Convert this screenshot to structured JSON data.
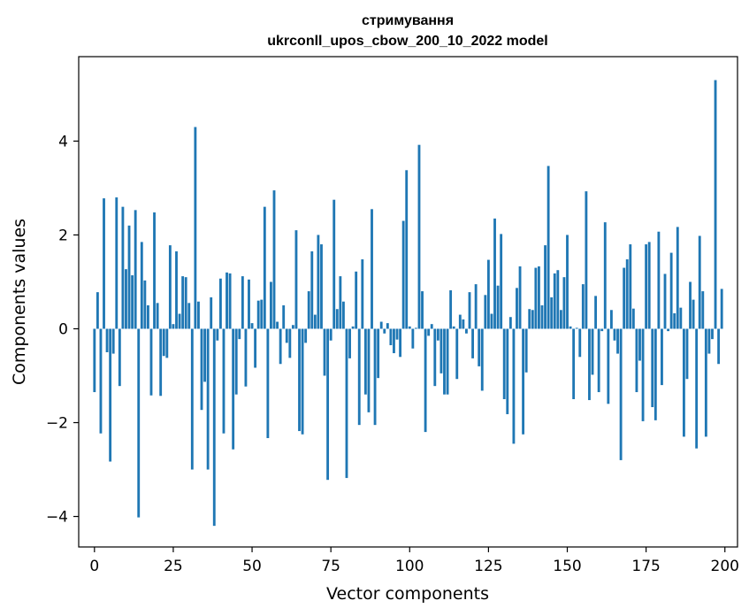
{
  "chart_data": {
    "type": "bar",
    "title_line1": "стримування",
    "title_line2": "ukrconll_upos_cbow_200_10_2022 model",
    "xlabel": "Vector components",
    "ylabel": "Components values",
    "xlim": [
      -5,
      204
    ],
    "ylim": [
      -4.65,
      5.8
    ],
    "x_ticks": [
      0,
      25,
      50,
      75,
      100,
      125,
      150,
      175,
      200
    ],
    "y_ticks": [
      -4,
      -2,
      0,
      2,
      4
    ],
    "x_tick_labels": [
      "0",
      "25",
      "50",
      "75",
      "100",
      "125",
      "150",
      "175",
      "200"
    ],
    "y_tick_labels": [
      "−4",
      "−2",
      "0",
      "2",
      "4"
    ],
    "bar_color": "#1f77b4",
    "grid": false,
    "legend": "none",
    "x": [
      0,
      1,
      2,
      3,
      4,
      5,
      6,
      7,
      8,
      9,
      10,
      11,
      12,
      13,
      14,
      15,
      16,
      17,
      18,
      19,
      20,
      21,
      22,
      23,
      24,
      25,
      26,
      27,
      28,
      29,
      30,
      31,
      32,
      33,
      34,
      35,
      36,
      37,
      38,
      39,
      40,
      41,
      42,
      43,
      44,
      45,
      46,
      47,
      48,
      49,
      50,
      51,
      52,
      53,
      54,
      55,
      56,
      57,
      58,
      59,
      60,
      61,
      62,
      63,
      64,
      65,
      66,
      67,
      68,
      69,
      70,
      71,
      72,
      73,
      74,
      75,
      76,
      77,
      78,
      79,
      80,
      81,
      82,
      83,
      84,
      85,
      86,
      87,
      88,
      89,
      90,
      91,
      92,
      93,
      94,
      95,
      96,
      97,
      98,
      99,
      100,
      101,
      102,
      103,
      104,
      105,
      106,
      107,
      108,
      109,
      110,
      111,
      112,
      113,
      114,
      115,
      116,
      117,
      118,
      119,
      120,
      121,
      122,
      123,
      124,
      125,
      126,
      127,
      128,
      129,
      130,
      131,
      132,
      133,
      134,
      135,
      136,
      137,
      138,
      139,
      140,
      141,
      142,
      143,
      144,
      145,
      146,
      147,
      148,
      149,
      150,
      151,
      152,
      153,
      154,
      155,
      156,
      157,
      158,
      159,
      160,
      161,
      162,
      163,
      164,
      165,
      166,
      167,
      168,
      169,
      170,
      171,
      172,
      173,
      174,
      175,
      176,
      177,
      178,
      179,
      180,
      181,
      182,
      183,
      184,
      185,
      186,
      187,
      188,
      189,
      190,
      191,
      192,
      193,
      194,
      195,
      196,
      197,
      198,
      199
    ],
    "values": [
      -1.35,
      0.78,
      -2.23,
      2.78,
      -0.5,
      -2.83,
      -0.53,
      2.8,
      -1.22,
      2.6,
      1.27,
      2.2,
      1.14,
      2.53,
      -4.02,
      1.85,
      1.03,
      0.5,
      -1.42,
      2.48,
      0.55,
      -1.43,
      -0.58,
      -0.62,
      1.78,
      0.1,
      1.65,
      0.32,
      1.12,
      1.1,
      0.55,
      -3.0,
      4.3,
      0.58,
      -1.73,
      -1.13,
      -3.0,
      0.67,
      -4.2,
      -0.25,
      1.07,
      -2.23,
      1.2,
      1.18,
      -2.57,
      -1.4,
      -0.22,
      1.12,
      -1.23,
      1.05,
      0.12,
      -0.83,
      0.6,
      0.62,
      2.6,
      -2.33,
      1.0,
      2.95,
      0.15,
      -0.75,
      0.5,
      -0.3,
      -0.62,
      0.08,
      2.1,
      -2.18,
      -2.25,
      -0.3,
      0.8,
      1.65,
      0.3,
      2.0,
      1.8,
      -1.0,
      -3.22,
      -0.25,
      2.75,
      0.42,
      1.12,
      0.58,
      -3.18,
      -0.63,
      0.05,
      1.22,
      -2.05,
      1.48,
      -1.4,
      -1.78,
      2.55,
      -2.05,
      -1.05,
      0.15,
      -0.1,
      0.12,
      -0.35,
      -0.52,
      -0.23,
      -0.6,
      2.3,
      3.38,
      0.05,
      -0.42,
      0.02,
      3.92,
      0.8,
      -2.2,
      -0.15,
      0.1,
      -1.22,
      -0.25,
      -0.95,
      -1.4,
      -1.4,
      0.82,
      0.05,
      -1.07,
      0.3,
      0.2,
      -0.1,
      0.78,
      -0.63,
      0.95,
      -0.8,
      -1.32,
      0.72,
      1.47,
      0.32,
      2.35,
      0.92,
      2.02,
      -1.5,
      -1.82,
      0.25,
      -2.45,
      0.87,
      1.33,
      -2.25,
      -0.93,
      0.42,
      0.4,
      1.3,
      1.33,
      0.5,
      1.78,
      3.47,
      0.67,
      1.18,
      1.25,
      0.4,
      1.1,
      2.0,
      0.05,
      -1.5,
      0.02,
      -0.6,
      0.95,
      2.93,
      -1.52,
      -0.98,
      0.7,
      -1.35,
      -0.05,
      2.27,
      -1.6,
      0.4,
      -0.25,
      -0.53,
      -2.8,
      1.3,
      1.48,
      1.8,
      0.43,
      -1.35,
      -0.68,
      -1.97,
      1.8,
      1.85,
      -1.67,
      -1.95,
      2.07,
      -1.2,
      1.17,
      -0.05,
      1.62,
      0.33,
      2.17,
      0.45,
      -2.3,
      -1.07,
      1.0,
      0.62,
      -2.55,
      1.98,
      0.8,
      -2.3,
      -0.53,
      -0.22,
      5.3,
      -0.75,
      0.85
    ]
  }
}
